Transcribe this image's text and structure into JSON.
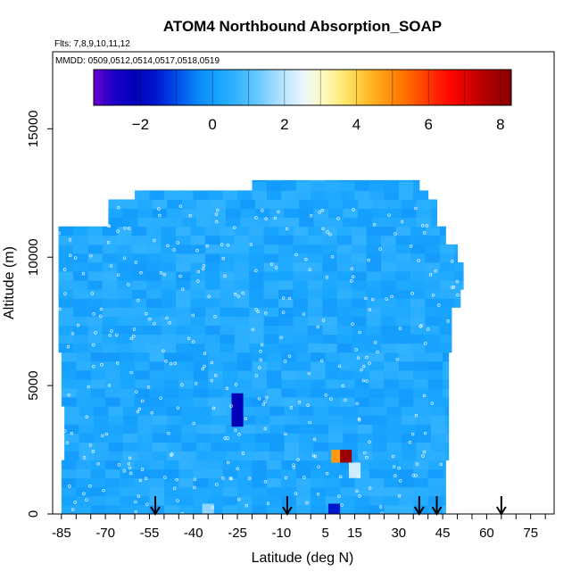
{
  "chart_data": {
    "type": "heatmap",
    "title": "ATOM4 Northbound Absorption_SOAP",
    "flights_note": "Flts: 7,8,9,10,11,12",
    "dates_note": "MMDD: 0509,0512,0514,0517,0518,0519",
    "xlabel": "Latitude (deg N)",
    "ylabel": "Altitude (m)",
    "xlim": [
      -88,
      83
    ],
    "ylim": [
      0,
      18000
    ],
    "x_ticks": [
      -85,
      -70,
      -55,
      -40,
      -25,
      -10,
      5,
      15,
      30,
      45,
      60,
      75
    ],
    "x_minor_ticks": [
      -85,
      -80,
      -75,
      -70,
      -65,
      -60,
      -55,
      -50,
      -45,
      -40,
      -35,
      -30,
      -25,
      -20,
      -15,
      -10,
      -5,
      0,
      5,
      10,
      15,
      20,
      25,
      30,
      35,
      40,
      45,
      50,
      55,
      60,
      65,
      70,
      75,
      80
    ],
    "y_ticks": [
      0,
      5000,
      10000,
      15000
    ],
    "colorbar": {
      "range": [
        -3.3,
        8.3
      ],
      "ticks": [
        -2,
        0,
        2,
        4,
        6,
        8
      ],
      "colors": [
        "#6a00d8",
        "#1a00c8",
        "#0000b8",
        "#0018d0",
        "#0050e8",
        "#0a88f8",
        "#19a6ff",
        "#3ab6ff",
        "#72ccff",
        "#b4e2ff",
        "#eaf6ff",
        "#fffbc0",
        "#ffe870",
        "#ffc030",
        "#ff9810",
        "#ff6c00",
        "#ff3800",
        "#ff0800",
        "#d80000",
        "#a80000",
        "#8a0000"
      ]
    },
    "field_background": 0.3,
    "data_extent": [
      {
        "alt": 0,
        "lat_min": -85,
        "lat_max": 46
      },
      {
        "alt": 2000,
        "lat_min": -84,
        "lat_max": 47
      },
      {
        "alt": 4000,
        "lat_min": -85,
        "lat_max": 47
      },
      {
        "alt": 6000,
        "lat_min": -86,
        "lat_max": 48
      },
      {
        "alt": 8000,
        "lat_min": -86,
        "lat_max": 51
      },
      {
        "alt": 8500,
        "lat_min": -86,
        "lat_max": 52
      },
      {
        "alt": 9500,
        "lat_min": -86,
        "lat_max": 50
      },
      {
        "alt": 10500,
        "lat_min": -86,
        "lat_max": 46
      },
      {
        "alt": 11000,
        "lat_min": -69,
        "lat_max": 43
      },
      {
        "alt": 12000,
        "lat_min": -60,
        "lat_max": 40
      },
      {
        "alt": 12500,
        "lat_min": -20,
        "lat_max": 37
      }
    ],
    "anomalies": [
      {
        "lat": -25,
        "alt_min": 3400,
        "alt_max": 4700,
        "value": -2.2
      },
      {
        "lat": 9,
        "alt_min": 2000,
        "alt_max": 2500,
        "value": 4.8
      },
      {
        "lat": 12,
        "alt_min": 2000,
        "alt_max": 2500,
        "value": 8.0
      },
      {
        "lat": 15,
        "alt_min": 1400,
        "alt_max": 2000,
        "value": 2.2
      },
      {
        "lat": 8,
        "alt_min": 0,
        "alt_max": 400,
        "value": -1.6
      },
      {
        "lat": -35,
        "alt_min": 0,
        "alt_max": 400,
        "value": 1.6
      }
    ],
    "flight_markers_lat": [
      -53,
      -8,
      37,
      43,
      65
    ]
  }
}
